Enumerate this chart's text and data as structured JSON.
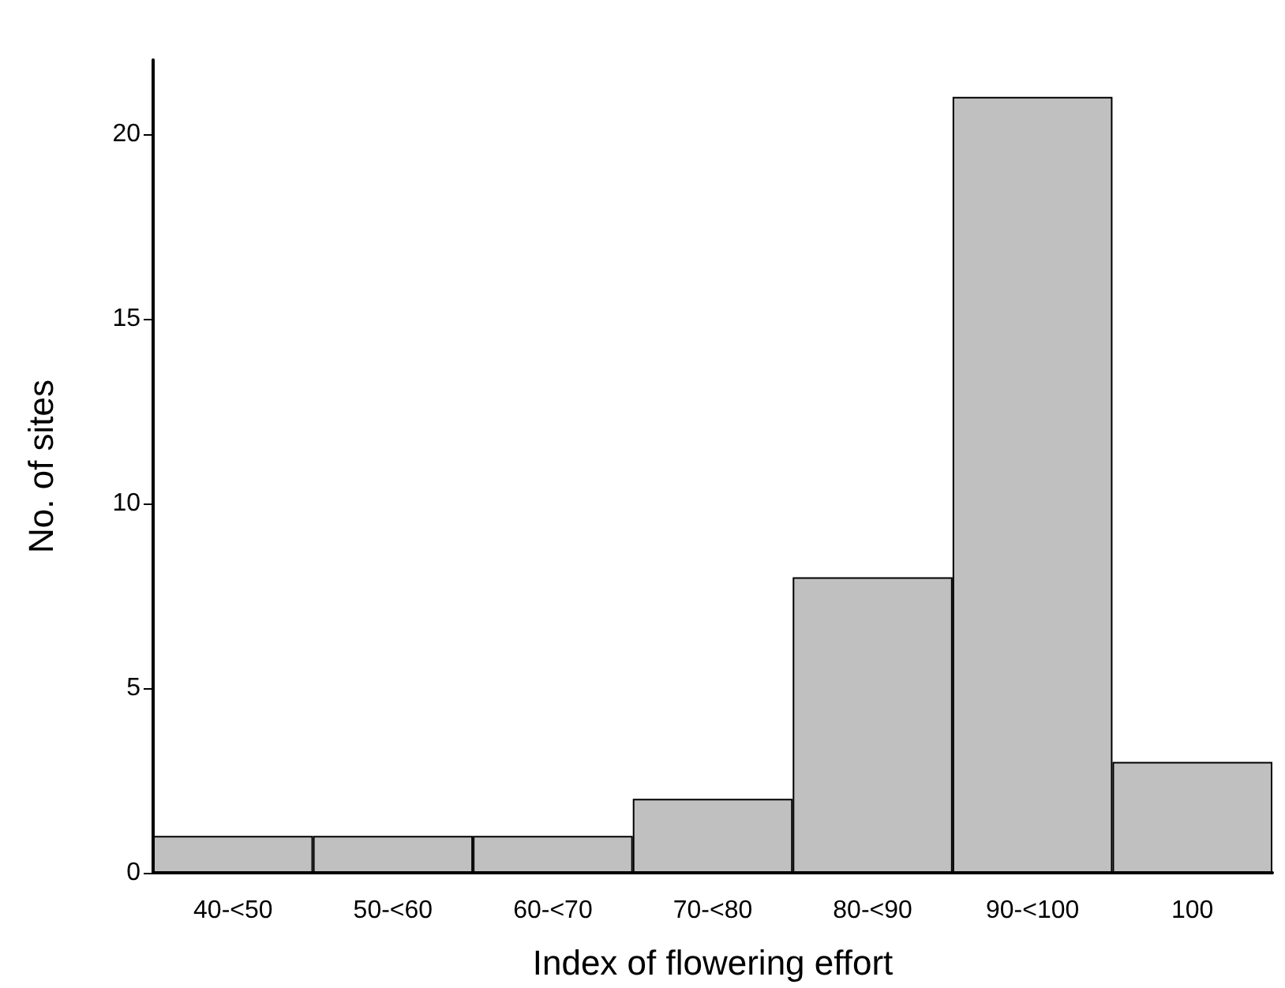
{
  "chart_data": {
    "type": "bar",
    "xlabel": "Index of flowering effort",
    "ylabel": "No. of sites",
    "categories": [
      "40-<50",
      "50-<60",
      "60-<70",
      "70-<80",
      "80-<90",
      "90-<100",
      "100"
    ],
    "values": [
      1,
      1,
      1,
      2,
      8,
      21,
      3
    ],
    "color": "#c0c0c0",
    "ylim": [
      0,
      22
    ],
    "yticks": [
      0,
      5,
      10,
      15,
      20
    ],
    "grid": false
  }
}
